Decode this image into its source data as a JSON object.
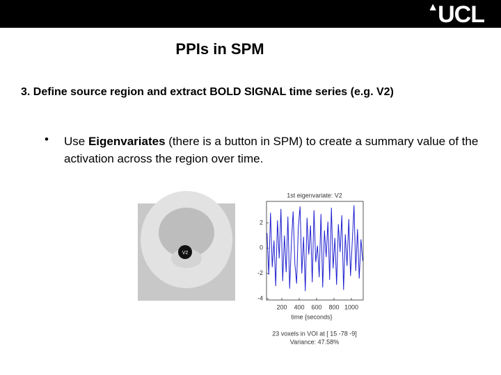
{
  "header": {
    "logo": "UCL"
  },
  "slide": {
    "title": "PPIs in SPM",
    "step": "3. Define source region and extract BOLD SIGNAL time series (e.g. V2)",
    "bullet_pre": "Use ",
    "bullet_bold": "Eigenvariates",
    "bullet_post": " (there is a button in SPM) to create a summary value of the activation across the region over time.",
    "brain_label": "V2"
  },
  "chart_data": {
    "type": "line",
    "title": "1st eigenvariate: V2",
    "x_label": "time {seconds}",
    "notes": [
      "23 voxels in VOI at [ 15 -78 -9]",
      "Variance: 47.58%"
    ],
    "color": "#1f1fd0",
    "x": [
      30,
      50,
      70,
      90,
      110,
      130,
      150,
      170,
      190,
      210,
      230,
      250,
      270,
      290,
      310,
      330,
      350,
      370,
      390,
      410,
      430,
      450,
      470,
      490,
      510,
      530,
      550,
      570,
      590,
      610,
      630,
      650,
      670,
      690,
      710,
      730,
      750,
      770,
      790,
      810,
      830,
      850,
      870,
      890,
      910,
      930,
      950,
      970,
      990,
      1010,
      1030,
      1050,
      1070,
      1090,
      1110,
      1130
    ],
    "values": [
      1.2,
      -2.1,
      2.8,
      -1.5,
      0.6,
      -3.0,
      2.2,
      -0.8,
      3.1,
      -2.6,
      1.0,
      -1.9,
      2.5,
      -3.2,
      0.4,
      2.9,
      -1.2,
      -2.8,
      1.7,
      3.3,
      -2.0,
      0.9,
      -3.4,
      2.4,
      -0.5,
      1.8,
      -2.7,
      3.0,
      -1.1,
      0.2,
      -2.3,
      2.7,
      -3.1,
      1.4,
      -0.7,
      2.1,
      -2.5,
      3.2,
      -1.6,
      0.8,
      -2.9,
      1.9,
      -0.3,
      2.6,
      -3.3,
      1.1,
      -1.4,
      2.3,
      -2.2,
      0.5,
      3.4,
      -1.8,
      1.5,
      -2.4,
      0.7,
      -1.0
    ],
    "xlim": [
      24,
      1136
    ],
    "ylim": [
      -4.1,
      3.7
    ],
    "xticks": [
      200,
      400,
      600,
      800,
      1000
    ],
    "yticks": [
      2,
      0,
      -2,
      -4
    ]
  }
}
